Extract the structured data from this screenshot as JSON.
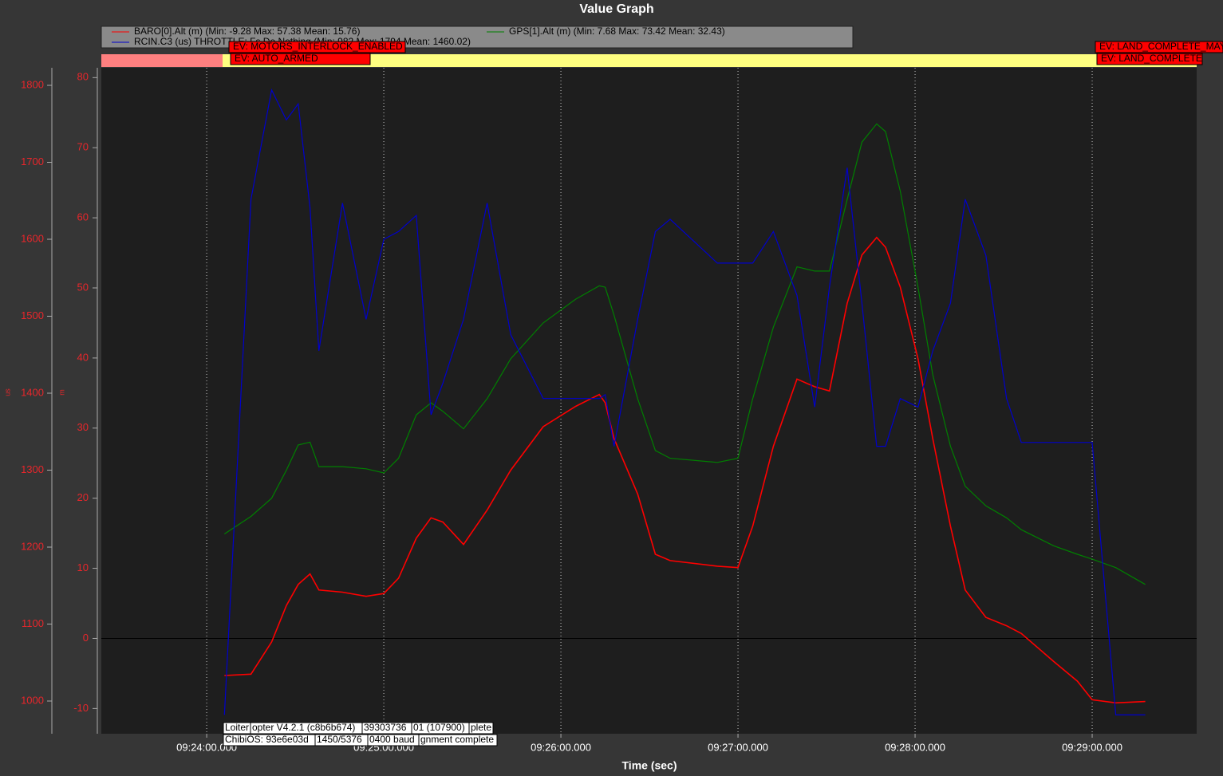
{
  "chart_data": {
    "type": "line",
    "title": "Value Graph",
    "x_label": "Time (sec)",
    "y_label": "m",
    "y2_label": "us",
    "x": [
      33846,
      33855,
      33862,
      33867,
      33871,
      33875,
      33878,
      33886,
      33894,
      33900,
      33905,
      33911,
      33916,
      33920,
      33927,
      33935,
      33943,
      33954,
      33965,
      33973,
      33975,
      33978,
      33986,
      33992,
      33997,
      34013,
      34020,
      34025,
      34032,
      34040,
      34046,
      34051,
      34057,
      34062,
      34067,
      34070,
      34075,
      34081,
      34086,
      34092,
      34097,
      34104,
      34111,
      34116,
      34127,
      34135,
      34140,
      34148,
      34158
    ],
    "series": [
      {
        "name": "BARO[0].Alt (m)  (Min: -9.28 Max: 57.38 Mean: 15.76)",
        "color": "#ff0000",
        "values": [
          -5.3,
          -5.1,
          -0.5,
          4.7,
          7.7,
          9.2,
          6.9,
          6.6,
          6.0,
          6.4,
          8.6,
          14.3,
          17.2,
          16.6,
          13.4,
          18.3,
          24.0,
          30.2,
          33.1,
          34.8,
          33.6,
          28.5,
          20.6,
          12.0,
          11.1,
          10.3,
          10.1,
          16.0,
          27.4,
          37.0,
          35.9,
          35.3,
          47.8,
          54.7,
          57.2,
          55.8,
          50.1,
          39.9,
          28.5,
          16.0,
          6.9,
          3.0,
          1.8,
          0.7,
          -3.3,
          -6.1,
          -8.75,
          -9.2,
          -9.0
        ]
      },
      {
        "name": "GPS[1].Alt (m)  (Min: 7.68 Max: 73.42 Mean: 32.43)",
        "color": "#008000",
        "values": [
          14.9,
          17.4,
          20.0,
          24.0,
          27.6,
          28.0,
          24.5,
          24.5,
          24.2,
          23.6,
          25.7,
          31.9,
          33.6,
          32.4,
          29.9,
          34.2,
          39.9,
          45.0,
          48.4,
          50.3,
          50.1,
          46.1,
          34.2,
          26.8,
          25.7,
          25.1,
          25.7,
          34.2,
          44.4,
          53.0,
          52.4,
          52.4,
          62.6,
          70.8,
          73.4,
          72.3,
          63.8,
          50.1,
          37.6,
          27.4,
          21.7,
          18.9,
          17.2,
          15.5,
          13.2,
          12.0,
          11.3,
          10.1,
          7.7
        ]
      },
      {
        "name": "RCIN.C3 (us) THROTTLE: Fs Do Nothing (Min: 982 Max: 1794 Mean: 1460.02)",
        "color": "#0000cd",
        "axis": "y2",
        "values": [
          982,
          1652,
          1794,
          1755,
          1776,
          1641,
          1455,
          1647,
          1496,
          1600,
          1610,
          1631,
          1372,
          1413,
          1496,
          1647,
          1476,
          1393,
          1393,
          1393,
          1398,
          1331,
          1496,
          1610,
          1626,
          1569,
          1569,
          1569,
          1610,
          1527,
          1382,
          1538,
          1693,
          1517,
          1331,
          1331,
          1393,
          1382,
          1455,
          1517,
          1652,
          1579,
          1393,
          1336,
          1336,
          1336,
          1336,
          982,
          982
        ]
      }
    ],
    "xlim": [
      33804.3,
      34175.4
    ],
    "xticks": [
      {
        "value": 33840,
        "label": "09:24:00.000"
      },
      {
        "value": 33900,
        "label": "09:25:00.000"
      },
      {
        "value": 33960,
        "label": "09:26:00.000"
      },
      {
        "value": 34020,
        "label": "09:27:00.000"
      },
      {
        "value": 34080,
        "label": "09:28:00.000"
      },
      {
        "value": 34140,
        "label": "09:29:00.000"
      }
    ],
    "ylim": [
      -13.6,
      81.4
    ],
    "yticks": [
      -10,
      0,
      10,
      20,
      30,
      40,
      50,
      60,
      70,
      80
    ],
    "y2lim": [
      957.5,
      1822.8
    ],
    "y2ticks": [
      1000,
      1100,
      1200,
      1300,
      1400,
      1500,
      1600,
      1700,
      1800
    ],
    "grid": true,
    "events": [
      "EV: MOTORS_INTERLOCK_ENABLED",
      "EV: AUTO_ARMED",
      "EV: LAND_COMPLETE_MAY",
      "EV: LAND_COMPLETE"
    ],
    "messages": [
      [
        "Loiter",
        "opter V4.2.1 (c8b6b674)",
        "39303736",
        "01 (107900)",
        "plete"
      ],
      [
        "ChibiOS: 93e6e03d",
        "1450/5376",
        "0400 baud",
        "gnment complete"
      ]
    ]
  }
}
